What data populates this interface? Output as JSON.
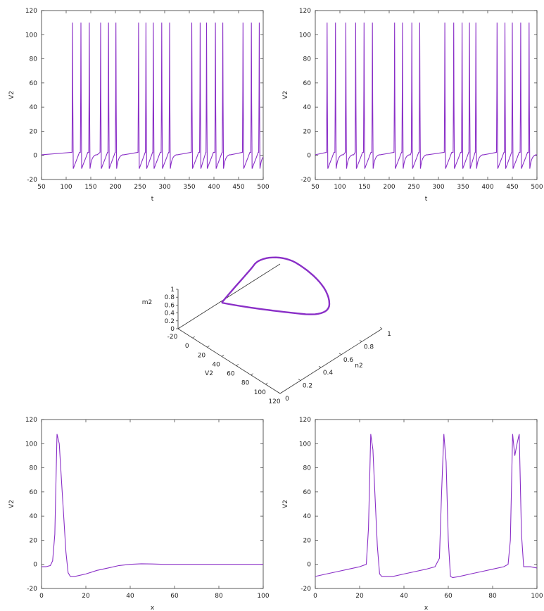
{
  "colors": {
    "line": "#8a2fc7",
    "axis": "#333333"
  },
  "chart_data": [
    {
      "type": "line",
      "xlabel": "t",
      "ylabel": "V2",
      "xlim": [
        50,
        500
      ],
      "ylim": [
        -20,
        120
      ],
      "xticks": [
        50,
        100,
        150,
        200,
        250,
        300,
        350,
        400,
        450,
        500
      ],
      "yticks": [
        -20,
        0,
        20,
        40,
        60,
        80,
        100,
        120
      ],
      "rest": 0.5,
      "spike_peak": 110,
      "spike_min": -11,
      "spike_times": [
        113,
        130,
        147,
        170,
        186,
        201,
        247,
        262,
        277,
        294,
        310,
        355,
        372,
        385,
        403,
        418,
        459,
        476,
        492
      ]
    },
    {
      "type": "line",
      "xlabel": "t",
      "ylabel": "V2",
      "xlim": [
        50,
        500
      ],
      "ylim": [
        -20,
        120
      ],
      "xticks": [
        50,
        100,
        150,
        200,
        250,
        300,
        350,
        400,
        450,
        500
      ],
      "yticks": [
        -20,
        0,
        20,
        40,
        60,
        80,
        100,
        120
      ],
      "rest": 0.5,
      "spike_peak": 110,
      "spike_min": -11,
      "spike_times": [
        74,
        91,
        112,
        132,
        149,
        166,
        211,
        227,
        246,
        262,
        313,
        331,
        348,
        363,
        376,
        419,
        435,
        450,
        467,
        484
      ]
    },
    {
      "type": "line",
      "xlabel": "x",
      "ylabel": "V2",
      "xlim": [
        0,
        100
      ],
      "ylim": [
        -20,
        120
      ],
      "xticks": [
        0,
        20,
        40,
        60,
        80,
        100
      ],
      "yticks": [
        -20,
        0,
        20,
        40,
        60,
        80,
        100,
        120
      ],
      "x": [
        0,
        2,
        4,
        5,
        6,
        7,
        8,
        9,
        10,
        11,
        12,
        13,
        15,
        20,
        25,
        30,
        35,
        40,
        45,
        50,
        55,
        60,
        70,
        80,
        90,
        100
      ],
      "y": [
        -2,
        -2,
        -1,
        3,
        25,
        108,
        100,
        70,
        40,
        10,
        -7,
        -10,
        -10,
        -8,
        -5,
        -3,
        -1,
        0,
        0.5,
        0.3,
        0,
        0,
        0,
        0,
        0,
        0
      ]
    },
    {
      "type": "line",
      "xlabel": "x",
      "ylabel": "V2",
      "xlim": [
        0,
        100
      ],
      "ylim": [
        -20,
        120
      ],
      "xticks": [
        0,
        20,
        40,
        60,
        80,
        100
      ],
      "yticks": [
        -20,
        0,
        20,
        40,
        60,
        80,
        100,
        120
      ],
      "x": [
        0,
        5,
        10,
        15,
        20,
        23,
        24,
        25,
        26,
        27,
        28,
        29,
        30,
        35,
        40,
        45,
        50,
        54,
        56,
        57,
        58,
        59,
        60,
        61,
        62,
        65,
        70,
        75,
        80,
        85,
        87,
        88,
        89,
        90,
        91,
        92,
        93,
        94,
        95,
        97,
        100
      ],
      "y": [
        -10,
        -8,
        -6,
        -4,
        -2,
        0,
        30,
        108,
        95,
        55,
        15,
        -8,
        -10,
        -10,
        -8,
        -6,
        -4,
        -2,
        5,
        60,
        108,
        85,
        20,
        -10,
        -11,
        -10,
        -8,
        -6,
        -4,
        -2,
        0,
        20,
        108,
        90,
        100,
        108,
        25,
        -2,
        -2,
        -2,
        -3
      ]
    },
    {
      "type": "line3d",
      "zlabel": "m2",
      "xlabel": "V2",
      "ylabel": "n2",
      "z_ticks": [
        0,
        0.2,
        0.4,
        0.6,
        0.8,
        1
      ],
      "v_ticks": [
        -20,
        0,
        20,
        40,
        60,
        80,
        100,
        120
      ],
      "n_ticks": [
        0,
        0.2,
        0.4,
        0.6,
        0.8,
        1
      ]
    }
  ]
}
